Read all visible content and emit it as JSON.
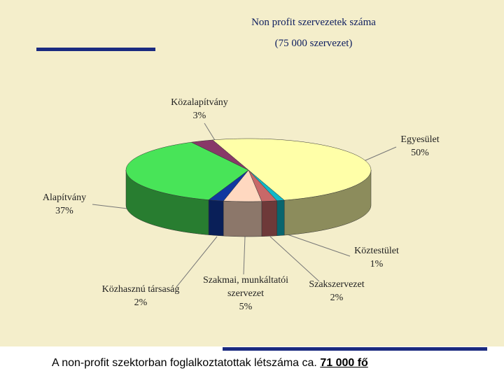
{
  "chart_data": {
    "type": "pie",
    "title": "Non profit szervezetek száma",
    "subtitle": "(75 000 szervezet)",
    "categories": [
      "Egyesület",
      "Köztestület",
      "Szakszervezet",
      "Szakmai, munkáltatói szervezet",
      "Közhasznú társaság",
      "Alapítvány",
      "Közalapítvány"
    ],
    "values": [
      50,
      1,
      2,
      5,
      2,
      37,
      3
    ],
    "value_labels": [
      "50%",
      "1%",
      "2%",
      "5%",
      "2%",
      "37%",
      "3%"
    ],
    "colors": [
      "#ffffa8",
      "#10b8c8",
      "#c86868",
      "#ffd8c0",
      "#1038a0",
      "#48e458",
      "#883868"
    ]
  },
  "footer": {
    "text": "A non-profit szektorban foglalkoztatottak létszáma ca.",
    "emphasis": "71 000 fő"
  }
}
